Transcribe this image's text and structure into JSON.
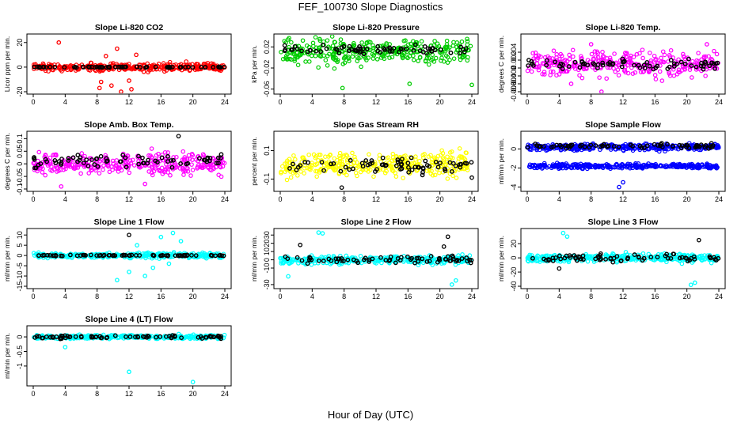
{
  "title": "FEF_100730  Slope Diagnostics",
  "xlabel": "Hour of Day (UTC)",
  "chart_data": [
    {
      "type": "scatter",
      "title": "Slope Li-820 CO2",
      "ylabel": "Licor ppm per min.",
      "xlim": [
        0,
        24
      ],
      "ylim": [
        -20,
        25
      ],
      "yticks": [
        -20,
        0,
        20
      ],
      "xticks": [
        0,
        4,
        8,
        12,
        16,
        20,
        24
      ],
      "color": "#ff0000",
      "series": [
        {
          "name": "",
          "color": "#ff0000",
          "center": 0,
          "spread": 4,
          "outliers": [
            [
              3.2,
              20
            ],
            [
              8.5,
              -12
            ],
            [
              9.8,
              -15
            ],
            [
              10.5,
              15
            ],
            [
              11,
              -20
            ],
            [
              12,
              -11
            ],
            [
              12.3,
              -18
            ],
            [
              12.9,
              10
            ],
            [
              9.1,
              9
            ],
            [
              8.3,
              -17
            ]
          ]
        },
        {
          "name": "",
          "color": "#000000",
          "center": 0,
          "spread": 0.3,
          "outliers": []
        }
      ]
    },
    {
      "type": "scatter",
      "title": "Slope Li-820 Pressure",
      "ylabel": "kPa per min.",
      "xlim": [
        0,
        24
      ],
      "ylim": [
        -0.065,
        0.04
      ],
      "yticks": [
        -0.06,
        -0.02,
        0.02
      ],
      "xticks": [
        0,
        4,
        8,
        12,
        16,
        20,
        24
      ],
      "color": "#00cc00",
      "series": [
        {
          "name": "",
          "color": "#00cc00",
          "center": 0.01,
          "spread": 0.03,
          "outliers": [
            [
              7.8,
              -0.058
            ],
            [
              16.2,
              -0.05
            ],
            [
              24,
              -0.052
            ]
          ]
        },
        {
          "name": "",
          "color": "#000000",
          "center": 0.015,
          "spread": 0.008,
          "outliers": []
        }
      ]
    },
    {
      "type": "scatter",
      "title": "Slope Li-820 Temp.",
      "ylabel": "degrees C per min.",
      "xlim": [
        0,
        24
      ],
      "ylim": [
        -0.006,
        0.008
      ],
      "yticks": [
        -0.006,
        -0.004,
        -0.002,
        0.0,
        0.002,
        0.004
      ],
      "xticks": [
        0,
        4,
        8,
        12,
        16,
        20,
        24
      ],
      "color": "#ff00ff",
      "series": [
        {
          "name": "",
          "color": "#ff00ff",
          "center": 0.001,
          "spread": 0.0035,
          "outliers": [
            [
              5.5,
              -0.004
            ],
            [
              9.3,
              -0.006
            ],
            [
              8,
              0.006
            ],
            [
              22.5,
              0.006
            ]
          ]
        },
        {
          "name": "",
          "color": "#000000",
          "center": 0.001,
          "spread": 0.0015,
          "outliers": []
        }
      ]
    },
    {
      "type": "scatter",
      "title": "Slope Amb. Box Temp.",
      "ylabel": "degrees C per min.",
      "xlim": [
        0,
        24
      ],
      "ylim": [
        -0.1,
        0.12
      ],
      "yticks": [
        -0.1,
        -0.05,
        0.0,
        0.05,
        0.1
      ],
      "xticks": [
        0,
        4,
        8,
        12,
        16,
        20,
        24
      ],
      "color": "#ff00ff",
      "series": [
        {
          "name": "",
          "color": "#ff00ff",
          "center": 0.0,
          "spread": 0.05,
          "outliers": [
            [
              3.5,
              -0.09
            ],
            [
              14,
              -0.08
            ]
          ]
        },
        {
          "name": "",
          "color": "#000000",
          "center": 0.01,
          "spread": 0.03,
          "outliers": [
            [
              18.2,
              0.11
            ]
          ]
        }
      ]
    },
    {
      "type": "scatter",
      "title": "Slope Gas Stream RH",
      "ylabel": "percent per min.",
      "xlim": [
        0,
        24
      ],
      "ylim": [
        -0.17,
        0.22
      ],
      "yticks": [
        -0.1,
        0.1
      ],
      "xticks": [
        0,
        4,
        8,
        12,
        16,
        20,
        24
      ],
      "color": "#ffff00",
      "series": [
        {
          "name": "",
          "color": "#ffff00",
          "center": 0.0,
          "spread": 0.1,
          "outliers": []
        },
        {
          "name": "",
          "color": "#000000",
          "center": 0.0,
          "spread": 0.06,
          "outliers": [
            [
              7.7,
              -0.16
            ],
            [
              24,
              -0.09
            ]
          ]
        }
      ]
    },
    {
      "type": "scatter",
      "title": "Slope Sample Flow",
      "ylabel": "ml/min per min.",
      "xlim": [
        0,
        24
      ],
      "ylim": [
        -4.2,
        1.6
      ],
      "yticks": [
        -4,
        -2,
        0
      ],
      "xticks": [
        0,
        4,
        8,
        12,
        16,
        20,
        24
      ],
      "color": "#0000ff",
      "series": [
        {
          "name": "",
          "color": "#0000ff",
          "center": 0.2,
          "spread": 0.4,
          "outliers": [
            [
              11.5,
              -4
            ],
            [
              12,
              -3.5
            ]
          ]
        },
        {
          "name": "",
          "color": "#0000ff",
          "center": -1.8,
          "spread": 0.3,
          "outliers": []
        },
        {
          "name": "",
          "color": "#000000",
          "center": 0.3,
          "spread": 0.3,
          "outliers": []
        }
      ]
    },
    {
      "type": "scatter",
      "title": "Slope Line 1 Flow",
      "ylabel": "ml/min per min.",
      "xlim": [
        0,
        24
      ],
      "ylim": [
        -15,
        12
      ],
      "yticks": [
        -15,
        -10,
        -5,
        0,
        5,
        10
      ],
      "xticks": [
        0,
        4,
        8,
        12,
        16,
        20,
        24
      ],
      "color": "#00ffff",
      "series": [
        {
          "name": "",
          "color": "#00ffff",
          "center": 0.0,
          "spread": 1.5,
          "outliers": [
            [
              10.5,
              -12
            ],
            [
              12,
              -8
            ],
            [
              14,
              -10
            ],
            [
              16,
              9
            ],
            [
              17.5,
              11
            ],
            [
              13,
              5
            ],
            [
              15,
              -6
            ],
            [
              17,
              -4
            ],
            [
              18.5,
              7
            ]
          ]
        },
        {
          "name": "",
          "color": "#000000",
          "center": 0.0,
          "spread": 0.3,
          "outliers": [
            [
              12,
              10
            ]
          ]
        }
      ]
    },
    {
      "type": "scatter",
      "title": "Slope Line 2 Flow",
      "ylabel": "ml/min per min.",
      "xlim": [
        0,
        24
      ],
      "ylim": [
        -32,
        35
      ],
      "yticks": [
        -30,
        -10,
        0,
        10,
        20,
        30
      ],
      "xticks": [
        0,
        4,
        8,
        12,
        16,
        20,
        24
      ],
      "color": "#00ffff",
      "series": [
        {
          "name": "",
          "color": "#00ffff",
          "center": 0.0,
          "spread": 6,
          "outliers": [
            [
              4.8,
              33
            ],
            [
              5.3,
              32
            ],
            [
              21.5,
              -30
            ],
            [
              22,
              -25
            ],
            [
              1,
              -20
            ]
          ]
        },
        {
          "name": "",
          "color": "#000000",
          "center": 0.0,
          "spread": 5,
          "outliers": [
            [
              2.5,
              18
            ],
            [
              21,
              28
            ],
            [
              20.5,
              16
            ]
          ]
        }
      ]
    },
    {
      "type": "scatter",
      "title": "Slope Line 3 Flow",
      "ylabel": "ml/min per min.",
      "xlim": [
        0,
        24
      ],
      "ylim": [
        -40,
        38
      ],
      "yticks": [
        -40,
        -20,
        0,
        20
      ],
      "xticks": [
        0,
        4,
        8,
        12,
        16,
        20,
        24
      ],
      "color": "#00ffff",
      "series": [
        {
          "name": "",
          "color": "#00ffff",
          "center": 0.0,
          "spread": 7,
          "outliers": [
            [
              4.5,
              35
            ],
            [
              5,
              30
            ],
            [
              21,
              -35
            ],
            [
              20.5,
              -38
            ]
          ]
        },
        {
          "name": "",
          "color": "#000000",
          "center": 0.0,
          "spread": 6,
          "outliers": [
            [
              21.5,
              25
            ],
            [
              4,
              -15
            ]
          ]
        }
      ]
    },
    {
      "type": "scatter",
      "title": "Slope Line 4 (LT) Flow",
      "ylabel": "ml/min per min.",
      "xlim": [
        0,
        24
      ],
      "ylim": [
        -1.6,
        0.3
      ],
      "yticks": [
        -1.0,
        -0.5,
        0.0
      ],
      "xticks": [
        0,
        4,
        8,
        12,
        16,
        20,
        24
      ],
      "color": "#00ffff",
      "series": [
        {
          "name": "",
          "color": "#00ffff",
          "center": 0.0,
          "spread": 0.08,
          "outliers": [
            [
              12,
              -1.2
            ],
            [
              20,
              -1.55
            ],
            [
              4,
              -0.35
            ]
          ]
        },
        {
          "name": "",
          "color": "#000000",
          "center": 0.0,
          "spread": 0.06,
          "outliers": []
        }
      ]
    }
  ]
}
